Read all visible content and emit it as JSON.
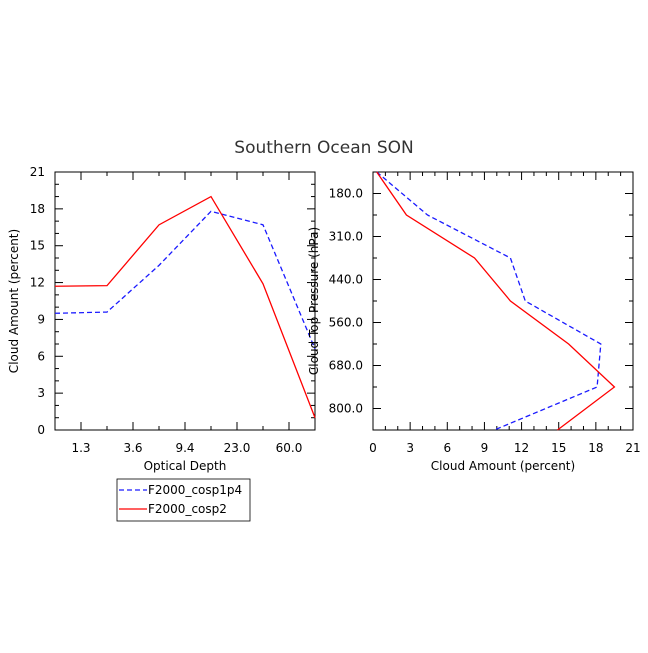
{
  "title": "Southern Ocean SON",
  "legend": {
    "entries": [
      {
        "label": "F2000_cosp1p4",
        "color": "#1a1aff",
        "dash": "dashed"
      },
      {
        "label": "F2000_cosp2",
        "color": "#ff0000",
        "dash": "solid"
      }
    ]
  },
  "chart_data": [
    {
      "type": "line",
      "xlabel": "Optical Depth",
      "ylabel": "Cloud Amount (percent)",
      "xticks": [
        "1.3",
        "3.6",
        "9.4",
        "23.0",
        "60.0"
      ],
      "yticks": [
        "0",
        "3",
        "6",
        "9",
        "12",
        "15",
        "18",
        "21"
      ],
      "ylim": [
        0,
        21
      ],
      "x": [
        0,
        1,
        2,
        3,
        4,
        5
      ],
      "series": [
        {
          "name": "F2000_cosp1p4",
          "color": "#1a1aff",
          "dash": "dashed",
          "values": [
            9.5,
            9.6,
            13.4,
            17.8,
            16.7,
            6.6
          ]
        },
        {
          "name": "F2000_cosp2",
          "color": "#ff0000",
          "dash": "solid",
          "values": [
            11.7,
            11.75,
            16.7,
            19.0,
            11.9,
            1.0
          ]
        }
      ],
      "grid": false
    },
    {
      "type": "line",
      "xlabel": "Cloud Amount (percent)",
      "ylabel": "Cloud Top Pressure (hPa)",
      "xticks": [
        "0",
        "3",
        "6",
        "9",
        "12",
        "15",
        "18",
        "21"
      ],
      "yticks": [
        "180.0",
        "310.0",
        "440.0",
        "560.0",
        "680.0",
        "800.0"
      ],
      "xlim": [
        0,
        21
      ],
      "ylim_reversed": true,
      "y": [
        0,
        1,
        2,
        3,
        4,
        5,
        6
      ],
      "series": [
        {
          "name": "F2000_cosp1p4",
          "color": "#1a1aff",
          "dash": "dashed",
          "values": [
            0.3,
            4.4,
            11.1,
            12.3,
            18.4,
            18.1,
            9.8
          ]
        },
        {
          "name": "F2000_cosp2",
          "color": "#ff0000",
          "dash": "solid",
          "values": [
            0.3,
            2.7,
            8.2,
            11.1,
            15.8,
            19.5,
            14.9
          ]
        }
      ],
      "grid": false
    }
  ]
}
